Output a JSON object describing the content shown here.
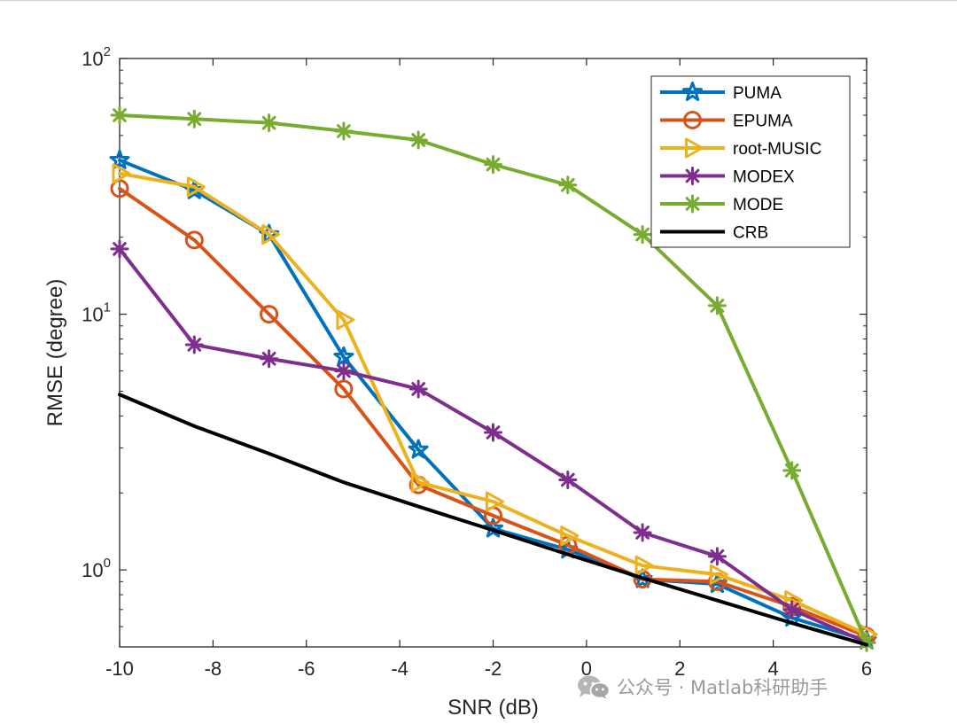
{
  "chart_data": {
    "type": "line",
    "yscale": "log",
    "xlabel": "SNR (dB)",
    "ylabel": "RMSE (degree)",
    "xlim": [
      -10,
      6
    ],
    "ylim": [
      0.5,
      100
    ],
    "xticks": [
      -10,
      -8,
      -6,
      -4,
      -2,
      0,
      2,
      4,
      6
    ],
    "yticks": [
      {
        "value": 1,
        "base": "10",
        "exp": "0"
      },
      {
        "value": 10,
        "base": "10",
        "exp": "1"
      },
      {
        "value": 100,
        "base": "10",
        "exp": "2"
      }
    ],
    "x": [
      -10,
      -8.4,
      -6.8,
      -5.2,
      -3.6,
      -2,
      -0.4,
      1.2,
      2.8,
      4.4,
      6
    ],
    "series": [
      {
        "name": "PUMA",
        "color": "#0072BD",
        "marker": "star",
        "values": [
          40,
          30.5,
          20.5,
          6.8,
          2.95,
          1.45,
          1.2,
          0.92,
          0.88,
          0.65,
          0.53
        ]
      },
      {
        "name": "EPUMA",
        "color": "#D95319",
        "marker": "circle",
        "values": [
          31,
          19.5,
          10,
          5.1,
          2.15,
          1.63,
          1.25,
          0.92,
          0.9,
          0.72,
          0.55
        ]
      },
      {
        "name": "root-MUSIC",
        "color": "#EDB120",
        "marker": "triangle-right",
        "values": [
          35.5,
          31.5,
          20.5,
          9.5,
          2.2,
          1.85,
          1.36,
          1.04,
          0.96,
          0.76,
          0.56
        ]
      },
      {
        "name": "MODEX",
        "color": "#7E2F8E",
        "marker": "asterisk",
        "values": [
          18,
          7.6,
          6.7,
          6,
          5.1,
          3.45,
          2.25,
          1.4,
          1.13,
          0.7,
          0.52
        ]
      },
      {
        "name": "MODE",
        "color": "#77AC30",
        "marker": "asterisk",
        "values": [
          60,
          58,
          56,
          52,
          48,
          38.5,
          32,
          20.5,
          10.8,
          2.45,
          0.52
        ]
      },
      {
        "name": "CRB",
        "color": "#000000",
        "marker": "none",
        "values": [
          4.85,
          3.65,
          2.85,
          2.2,
          1.77,
          1.43,
          1.15,
          0.93,
          0.76,
          0.62,
          0.51
        ]
      }
    ],
    "legend_position": "top-right"
  },
  "watermark": {
    "text": "公众号 · Matlab科研助手",
    "icon": "wechat-icon"
  }
}
